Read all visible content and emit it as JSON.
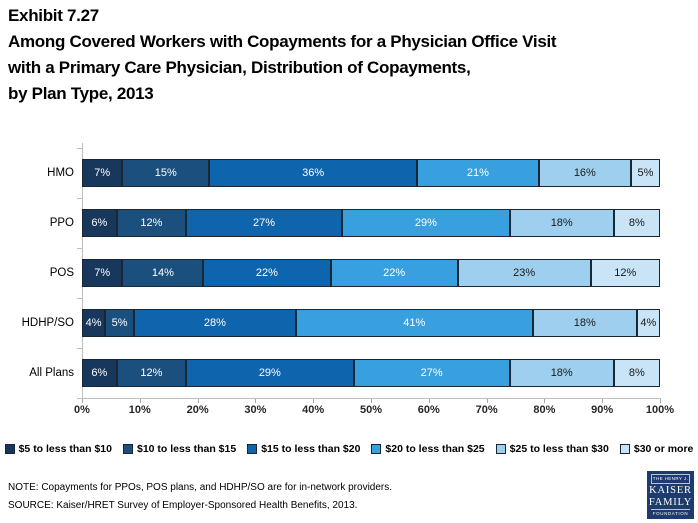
{
  "title": {
    "exhibit": "Exhibit 7.27",
    "lines": [
      "Among Covered Workers with Copayments for a Physician Office Visit",
      "with a Primary Care Physician, Distribution of Copayments,",
      "by Plan Type, 2013"
    ]
  },
  "chart_data": {
    "type": "bar",
    "stacked": true,
    "orientation": "horizontal",
    "categories": [
      "HMO",
      "PPO",
      "POS",
      "HDHP/SO",
      "All Plans"
    ],
    "series": [
      {
        "name": "$5 to less than $10",
        "color": "#17375d",
        "values": [
          7,
          6,
          7,
          4,
          6
        ]
      },
      {
        "name": "$10 to less than $15",
        "color": "#1b4f7e",
        "values": [
          15,
          12,
          14,
          5,
          12
        ]
      },
      {
        "name": "$15 to less than $20",
        "color": "#0f65ad",
        "values": [
          36,
          27,
          22,
          28,
          29
        ]
      },
      {
        "name": "$20 to less than $25",
        "color": "#38a0de",
        "values": [
          21,
          29,
          22,
          41,
          27
        ]
      },
      {
        "name": "$25 to less than $30",
        "color": "#9ecfee",
        "values": [
          16,
          18,
          23,
          18,
          18
        ]
      },
      {
        "name": "$30 or more",
        "color": "#c9e4f7",
        "values": [
          5,
          8,
          12,
          4,
          8
        ]
      }
    ],
    "value_suffix": "%",
    "xlim": [
      0,
      100
    ],
    "x_ticks": [
      "0%",
      "10%",
      "20%",
      "30%",
      "40%",
      "50%",
      "60%",
      "70%",
      "80%",
      "90%",
      "100%"
    ],
    "grid": false,
    "legend_position": "bottom"
  },
  "notes": {
    "note": "NOTE: Copayments for PPOs, POS plans, and HDHP/SO are for in-network providers.",
    "source": "SOURCE:  Kaiser/HRET Survey of Employer-Sponsored Health Benefits, 2013."
  },
  "logo": {
    "line1": "THE HENRY J.",
    "line2": "KAISER",
    "line3": "FAMILY",
    "line4": "FOUNDATION",
    "bg_color": "#1e3b6d"
  }
}
